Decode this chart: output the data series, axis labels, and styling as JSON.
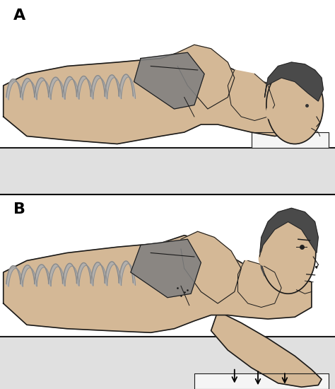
{
  "title_A": "A",
  "title_B": "B",
  "fig_width": 4.74,
  "fig_height": 5.5,
  "dpi": 100,
  "bg_color": "#ffffff",
  "skin_color": "#d4b896",
  "bone_color": "#8a8a8a",
  "bone_light": "#b0b0b0",
  "outline_color": "#1a1a1a",
  "hair_color": "#4a4a4a",
  "label_fontsize": 16,
  "label_fontweight": "bold"
}
